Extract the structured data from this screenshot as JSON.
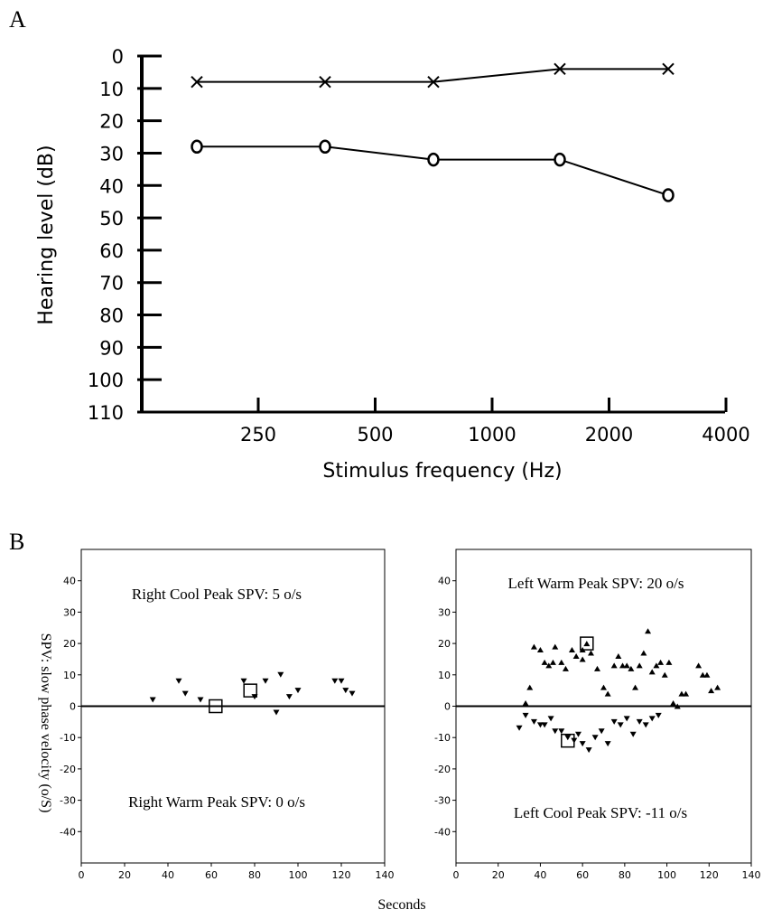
{
  "panels": {
    "a_label": "A",
    "b_label": "B"
  },
  "chart_data": [
    {
      "type": "line",
      "ylabel": "Hearing level (dB)",
      "xlabel": "Stimulus frequency (Hz)",
      "x_tick_labels": [
        "250",
        "500",
        "1000",
        "2000",
        "4000"
      ],
      "x_positions_log2_250": [
        -0.5,
        0.5,
        1.5,
        2.5,
        3.5
      ],
      "y_ticks": [
        0,
        10,
        20,
        30,
        40,
        50,
        60,
        70,
        80,
        90,
        100,
        110
      ],
      "ylim": [
        0,
        110
      ],
      "y_inverted": true,
      "series": [
        {
          "marker": "x",
          "y": [
            8,
            8,
            8,
            4,
            4
          ]
        },
        {
          "marker": "o",
          "y": [
            28,
            28,
            32,
            32,
            43
          ]
        }
      ]
    },
    {
      "type": "scatter",
      "title": "Right Cool Peak SPV: 5 o/s",
      "subtitle": "Right Warm Peak SPV: 0 o/s",
      "xlim": [
        0,
        140
      ],
      "ylim": [
        -50,
        50
      ],
      "x_ticks": [
        0,
        20,
        40,
        60,
        80,
        100,
        120,
        140
      ],
      "y_ticks": [
        40,
        30,
        20,
        10,
        0,
        -10,
        -20,
        -30,
        -40
      ],
      "down_triangles": [
        [
          33,
          2
        ],
        [
          45,
          8
        ],
        [
          48,
          4
        ],
        [
          55,
          2
        ],
        [
          75,
          8
        ],
        [
          80,
          3
        ],
        [
          85,
          8
        ],
        [
          92,
          10
        ],
        [
          96,
          3
        ],
        [
          100,
          5
        ],
        [
          117,
          8
        ],
        [
          120,
          8
        ],
        [
          122,
          5
        ],
        [
          125,
          4
        ],
        [
          90,
          -2
        ]
      ],
      "peak_boxes": [
        [
          78,
          5
        ],
        [
          62,
          0
        ]
      ]
    },
    {
      "type": "scatter",
      "title": "Left Warm Peak SPV: 20 o/s",
      "subtitle": "Left Cool Peak SPV: -11 o/s",
      "xlim": [
        0,
        140
      ],
      "ylim": [
        -50,
        50
      ],
      "x_ticks": [
        0,
        20,
        40,
        60,
        80,
        100,
        120,
        140
      ],
      "y_ticks": [
        40,
        30,
        20,
        10,
        0,
        -10,
        -20,
        -30,
        -40
      ],
      "up_triangles": [
        [
          33,
          1
        ],
        [
          35,
          6
        ],
        [
          37,
          19
        ],
        [
          40,
          18
        ],
        [
          42,
          14
        ],
        [
          44,
          13
        ],
        [
          46,
          14
        ],
        [
          47,
          19
        ],
        [
          50,
          14
        ],
        [
          52,
          12
        ],
        [
          55,
          18
        ],
        [
          57,
          16
        ],
        [
          60,
          15
        ],
        [
          62,
          20
        ],
        [
          64,
          17
        ],
        [
          67,
          12
        ],
        [
          70,
          6
        ],
        [
          72,
          4
        ],
        [
          75,
          13
        ],
        [
          77,
          16
        ],
        [
          79,
          13
        ],
        [
          81,
          13
        ],
        [
          83,
          12
        ],
        [
          85,
          6
        ],
        [
          87,
          13
        ],
        [
          89,
          17
        ],
        [
          91,
          24
        ],
        [
          93,
          11
        ],
        [
          95,
          13
        ],
        [
          97,
          14
        ],
        [
          99,
          10
        ],
        [
          101,
          14
        ],
        [
          103,
          1
        ],
        [
          105,
          0
        ],
        [
          107,
          4
        ],
        [
          109,
          4
        ],
        [
          115,
          13
        ],
        [
          117,
          10
        ],
        [
          119,
          10
        ],
        [
          121,
          5
        ],
        [
          124,
          6
        ],
        [
          60,
          18
        ]
      ],
      "down_triangles": [
        [
          30,
          -7
        ],
        [
          33,
          -3
        ],
        [
          37,
          -5
        ],
        [
          40,
          -6
        ],
        [
          42,
          -6
        ],
        [
          45,
          -4
        ],
        [
          47,
          -8
        ],
        [
          50,
          -8
        ],
        [
          53,
          -10
        ],
        [
          56,
          -11
        ],
        [
          58,
          -9
        ],
        [
          60,
          -12
        ],
        [
          63,
          -14
        ],
        [
          66,
          -10
        ],
        [
          69,
          -8
        ],
        [
          72,
          -12
        ],
        [
          75,
          -5
        ],
        [
          78,
          -6
        ],
        [
          81,
          -4
        ],
        [
          84,
          -9
        ],
        [
          87,
          -5
        ],
        [
          90,
          -6
        ],
        [
          93,
          -4
        ],
        [
          96,
          -3
        ]
      ],
      "peak_boxes": [
        [
          62,
          20
        ],
        [
          53,
          -11
        ]
      ]
    }
  ],
  "shared": {
    "ylabel_b": "SPV: slow phase velocity (o/S)",
    "xlabel_b": "Seconds"
  }
}
